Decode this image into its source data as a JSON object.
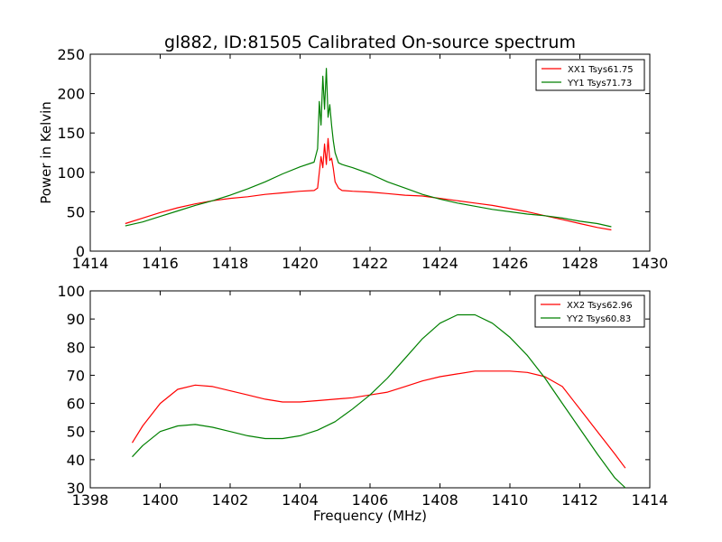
{
  "chart_data": [
    {
      "type": "line",
      "title": "gl882, ID:81505 Calibrated On-source spectrum",
      "xlabel": "",
      "ylabel": "Power in Kelvin",
      "xlim": [
        1414,
        1430
      ],
      "ylim": [
        0,
        250
      ],
      "xticks": [
        "1414",
        "1416",
        "1418",
        "1420",
        "1422",
        "1424",
        "1426",
        "1428",
        "1430"
      ],
      "yticks": [
        "0",
        "50",
        "100",
        "150",
        "200",
        "250"
      ],
      "legend_position": "top-right",
      "series": [
        {
          "name": "XX1 Tsys61.75",
          "color": "#ff0000",
          "points": [
            [
              1415.0,
              35
            ],
            [
              1415.5,
              42
            ],
            [
              1416.0,
              49
            ],
            [
              1416.5,
              55
            ],
            [
              1417.0,
              60
            ],
            [
              1417.5,
              64
            ],
            [
              1418.0,
              67
            ],
            [
              1418.5,
              69
            ],
            [
              1419.0,
              72
            ],
            [
              1419.5,
              74
            ],
            [
              1420.0,
              76
            ],
            [
              1420.4,
              77
            ],
            [
              1420.5,
              80
            ],
            [
              1420.55,
              100
            ],
            [
              1420.6,
              120
            ],
            [
              1420.65,
              106
            ],
            [
              1420.7,
              136
            ],
            [
              1420.75,
              110
            ],
            [
              1420.8,
              143
            ],
            [
              1420.85,
              115
            ],
            [
              1420.9,
              118
            ],
            [
              1420.95,
              105
            ],
            [
              1421.0,
              88
            ],
            [
              1421.1,
              80
            ],
            [
              1421.2,
              77
            ],
            [
              1421.5,
              76
            ],
            [
              1422.0,
              75
            ],
            [
              1422.5,
              73
            ],
            [
              1423.0,
              71
            ],
            [
              1423.5,
              70
            ],
            [
              1424.0,
              67
            ],
            [
              1424.5,
              64
            ],
            [
              1425.0,
              61
            ],
            [
              1425.5,
              58
            ],
            [
              1426.0,
              54
            ],
            [
              1426.5,
              50
            ],
            [
              1427.0,
              45
            ],
            [
              1427.5,
              40
            ],
            [
              1428.0,
              35
            ],
            [
              1428.5,
              30
            ],
            [
              1428.9,
              27
            ]
          ]
        },
        {
          "name": "YY1 Tsys71.73",
          "color": "#008000",
          "points": [
            [
              1415.0,
              32
            ],
            [
              1415.5,
              37
            ],
            [
              1416.0,
              44
            ],
            [
              1416.5,
              51
            ],
            [
              1417.0,
              58
            ],
            [
              1417.5,
              64
            ],
            [
              1418.0,
              71
            ],
            [
              1418.5,
              79
            ],
            [
              1419.0,
              88
            ],
            [
              1419.5,
              98
            ],
            [
              1420.0,
              107
            ],
            [
              1420.4,
              113
            ],
            [
              1420.5,
              130
            ],
            [
              1420.55,
              190
            ],
            [
              1420.6,
              160
            ],
            [
              1420.65,
              222
            ],
            [
              1420.7,
              180
            ],
            [
              1420.75,
              232
            ],
            [
              1420.8,
              170
            ],
            [
              1420.85,
              186
            ],
            [
              1420.9,
              160
            ],
            [
              1420.95,
              140
            ],
            [
              1421.0,
              125
            ],
            [
              1421.1,
              112
            ],
            [
              1421.2,
              110
            ],
            [
              1421.5,
              106
            ],
            [
              1422.0,
              98
            ],
            [
              1422.5,
              88
            ],
            [
              1423.0,
              80
            ],
            [
              1423.5,
              72
            ],
            [
              1424.0,
              66
            ],
            [
              1424.5,
              61
            ],
            [
              1425.0,
              57
            ],
            [
              1425.5,
              53
            ],
            [
              1426.0,
              50
            ],
            [
              1426.5,
              47
            ],
            [
              1427.0,
              45
            ],
            [
              1427.5,
              42
            ],
            [
              1428.0,
              38
            ],
            [
              1428.5,
              35
            ],
            [
              1428.9,
              31
            ]
          ]
        }
      ]
    },
    {
      "type": "line",
      "title": "",
      "xlabel": "Frequency (MHz)",
      "ylabel": "",
      "xlim": [
        1398,
        1414
      ],
      "ylim": [
        30,
        100
      ],
      "xticks": [
        "1398",
        "1400",
        "1402",
        "1404",
        "1406",
        "1408",
        "1410",
        "1412",
        "1414"
      ],
      "yticks": [
        "30",
        "40",
        "50",
        "60",
        "70",
        "80",
        "90",
        "100"
      ],
      "legend_position": "top-right",
      "series": [
        {
          "name": "XX2 Tsys62.96",
          "color": "#ff0000",
          "points": [
            [
              1399.2,
              46
            ],
            [
              1399.5,
              52
            ],
            [
              1400.0,
              60
            ],
            [
              1400.5,
              65
            ],
            [
              1401.0,
              66.5
            ],
            [
              1401.5,
              66
            ],
            [
              1402.0,
              64.5
            ],
            [
              1402.5,
              63
            ],
            [
              1403.0,
              61.5
            ],
            [
              1403.5,
              60.5
            ],
            [
              1404.0,
              60.5
            ],
            [
              1404.5,
              61
            ],
            [
              1405.0,
              61.5
            ],
            [
              1405.5,
              62
            ],
            [
              1406.0,
              63
            ],
            [
              1406.5,
              64
            ],
            [
              1407.0,
              66
            ],
            [
              1407.5,
              68
            ],
            [
              1408.0,
              69.5
            ],
            [
              1408.5,
              70.5
            ],
            [
              1409.0,
              71.5
            ],
            [
              1409.5,
              71.5
            ],
            [
              1410.0,
              71.5
            ],
            [
              1410.5,
              71
            ],
            [
              1411.0,
              69.5
            ],
            [
              1411.5,
              66
            ],
            [
              1412.0,
              58
            ],
            [
              1412.5,
              50
            ],
            [
              1413.0,
              42
            ],
            [
              1413.3,
              37
            ]
          ]
        },
        {
          "name": "YY2 Tsys60.83",
          "color": "#008000",
          "points": [
            [
              1399.2,
              41
            ],
            [
              1399.5,
              45
            ],
            [
              1400.0,
              50
            ],
            [
              1400.5,
              52
            ],
            [
              1401.0,
              52.5
            ],
            [
              1401.5,
              51.5
            ],
            [
              1402.0,
              50
            ],
            [
              1402.5,
              48.5
            ],
            [
              1403.0,
              47.5
            ],
            [
              1403.5,
              47.5
            ],
            [
              1404.0,
              48.5
            ],
            [
              1404.5,
              50.5
            ],
            [
              1405.0,
              53.5
            ],
            [
              1405.5,
              58
            ],
            [
              1406.0,
              63
            ],
            [
              1406.5,
              69
            ],
            [
              1407.0,
              76
            ],
            [
              1407.5,
              83
            ],
            [
              1408.0,
              88.5
            ],
            [
              1408.5,
              91.5
            ],
            [
              1409.0,
              91.5
            ],
            [
              1409.5,
              88.5
            ],
            [
              1410.0,
              83.5
            ],
            [
              1410.5,
              77
            ],
            [
              1411.0,
              69
            ],
            [
              1411.5,
              60
            ],
            [
              1412.0,
              51
            ],
            [
              1412.5,
              42
            ],
            [
              1413.0,
              33.5
            ],
            [
              1413.3,
              30
            ]
          ]
        }
      ]
    }
  ]
}
